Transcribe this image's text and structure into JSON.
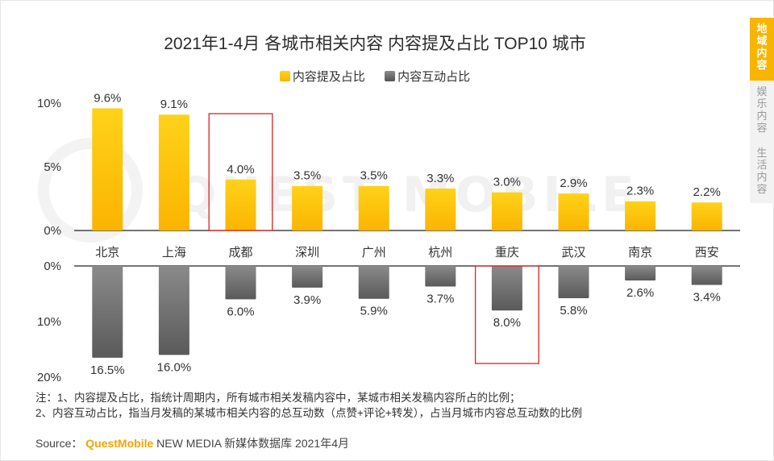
{
  "colors": {
    "bar_top": "#fdbf00",
    "bar_bottom": "#777777",
    "highlight_box": "#e02020",
    "brand": "#f5a300",
    "tab_active": "#f7b500"
  },
  "chart_data": {
    "type": "bar",
    "title": "2021年1-4月 各城市相关内容 内容提及占比 TOP10 城市",
    "categories": [
      "北京",
      "上海",
      "成都",
      "深圳",
      "广州",
      "杭州",
      "重庆",
      "武汉",
      "南京",
      "西安"
    ],
    "series": [
      {
        "name": "内容提及占比",
        "values": [
          9.6,
          9.1,
          4.0,
          3.5,
          3.5,
          3.3,
          3.0,
          2.9,
          2.3,
          2.2
        ],
        "labels": [
          "9.6%",
          "9.1%",
          "4.0%",
          "3.5%",
          "3.5%",
          "3.3%",
          "3.0%",
          "2.9%",
          "2.3%",
          "2.2%"
        ],
        "ylim": [
          0,
          10
        ],
        "ticks": [
          "0%",
          "5%",
          "10%"
        ],
        "highlight": "成都"
      },
      {
        "name": "内容互动占比",
        "values": [
          16.5,
          16.0,
          6.0,
          3.9,
          5.9,
          3.7,
          8.0,
          5.8,
          2.6,
          3.4
        ],
        "labels": [
          "16.5%",
          "16.0%",
          "6.0%",
          "3.9%",
          "5.9%",
          "3.7%",
          "8.0%",
          "5.8%",
          "2.6%",
          "3.4%"
        ],
        "ylim": [
          0,
          20
        ],
        "ticks": [
          "0%",
          "10%",
          "20%"
        ],
        "highlight": "重庆"
      }
    ],
    "legend": [
      "内容提及占比",
      "内容互动占比"
    ],
    "legend_position": "top-center"
  },
  "notes": [
    "注：1、内容提及占比，指统计周期内，所有城市相关发稿内容中，某城市相关发稿内容所占的比例；",
    "2、内容互动占比，指当月发稿的某城市相关内容的总互动数（点赞+评论+转发），占当月城市内容总互动数的比例"
  ],
  "source": {
    "label": "Source：",
    "brand": "QuestMobile",
    "rest": "NEW MEDIA 新媒体数据库 2021年4月"
  },
  "watermark": "QUEST MOBILE",
  "sidetabs": [
    {
      "label": "地域内容",
      "active": true
    },
    {
      "label": "娱乐内容",
      "active": false
    },
    {
      "label": "生活内容",
      "active": false
    }
  ]
}
